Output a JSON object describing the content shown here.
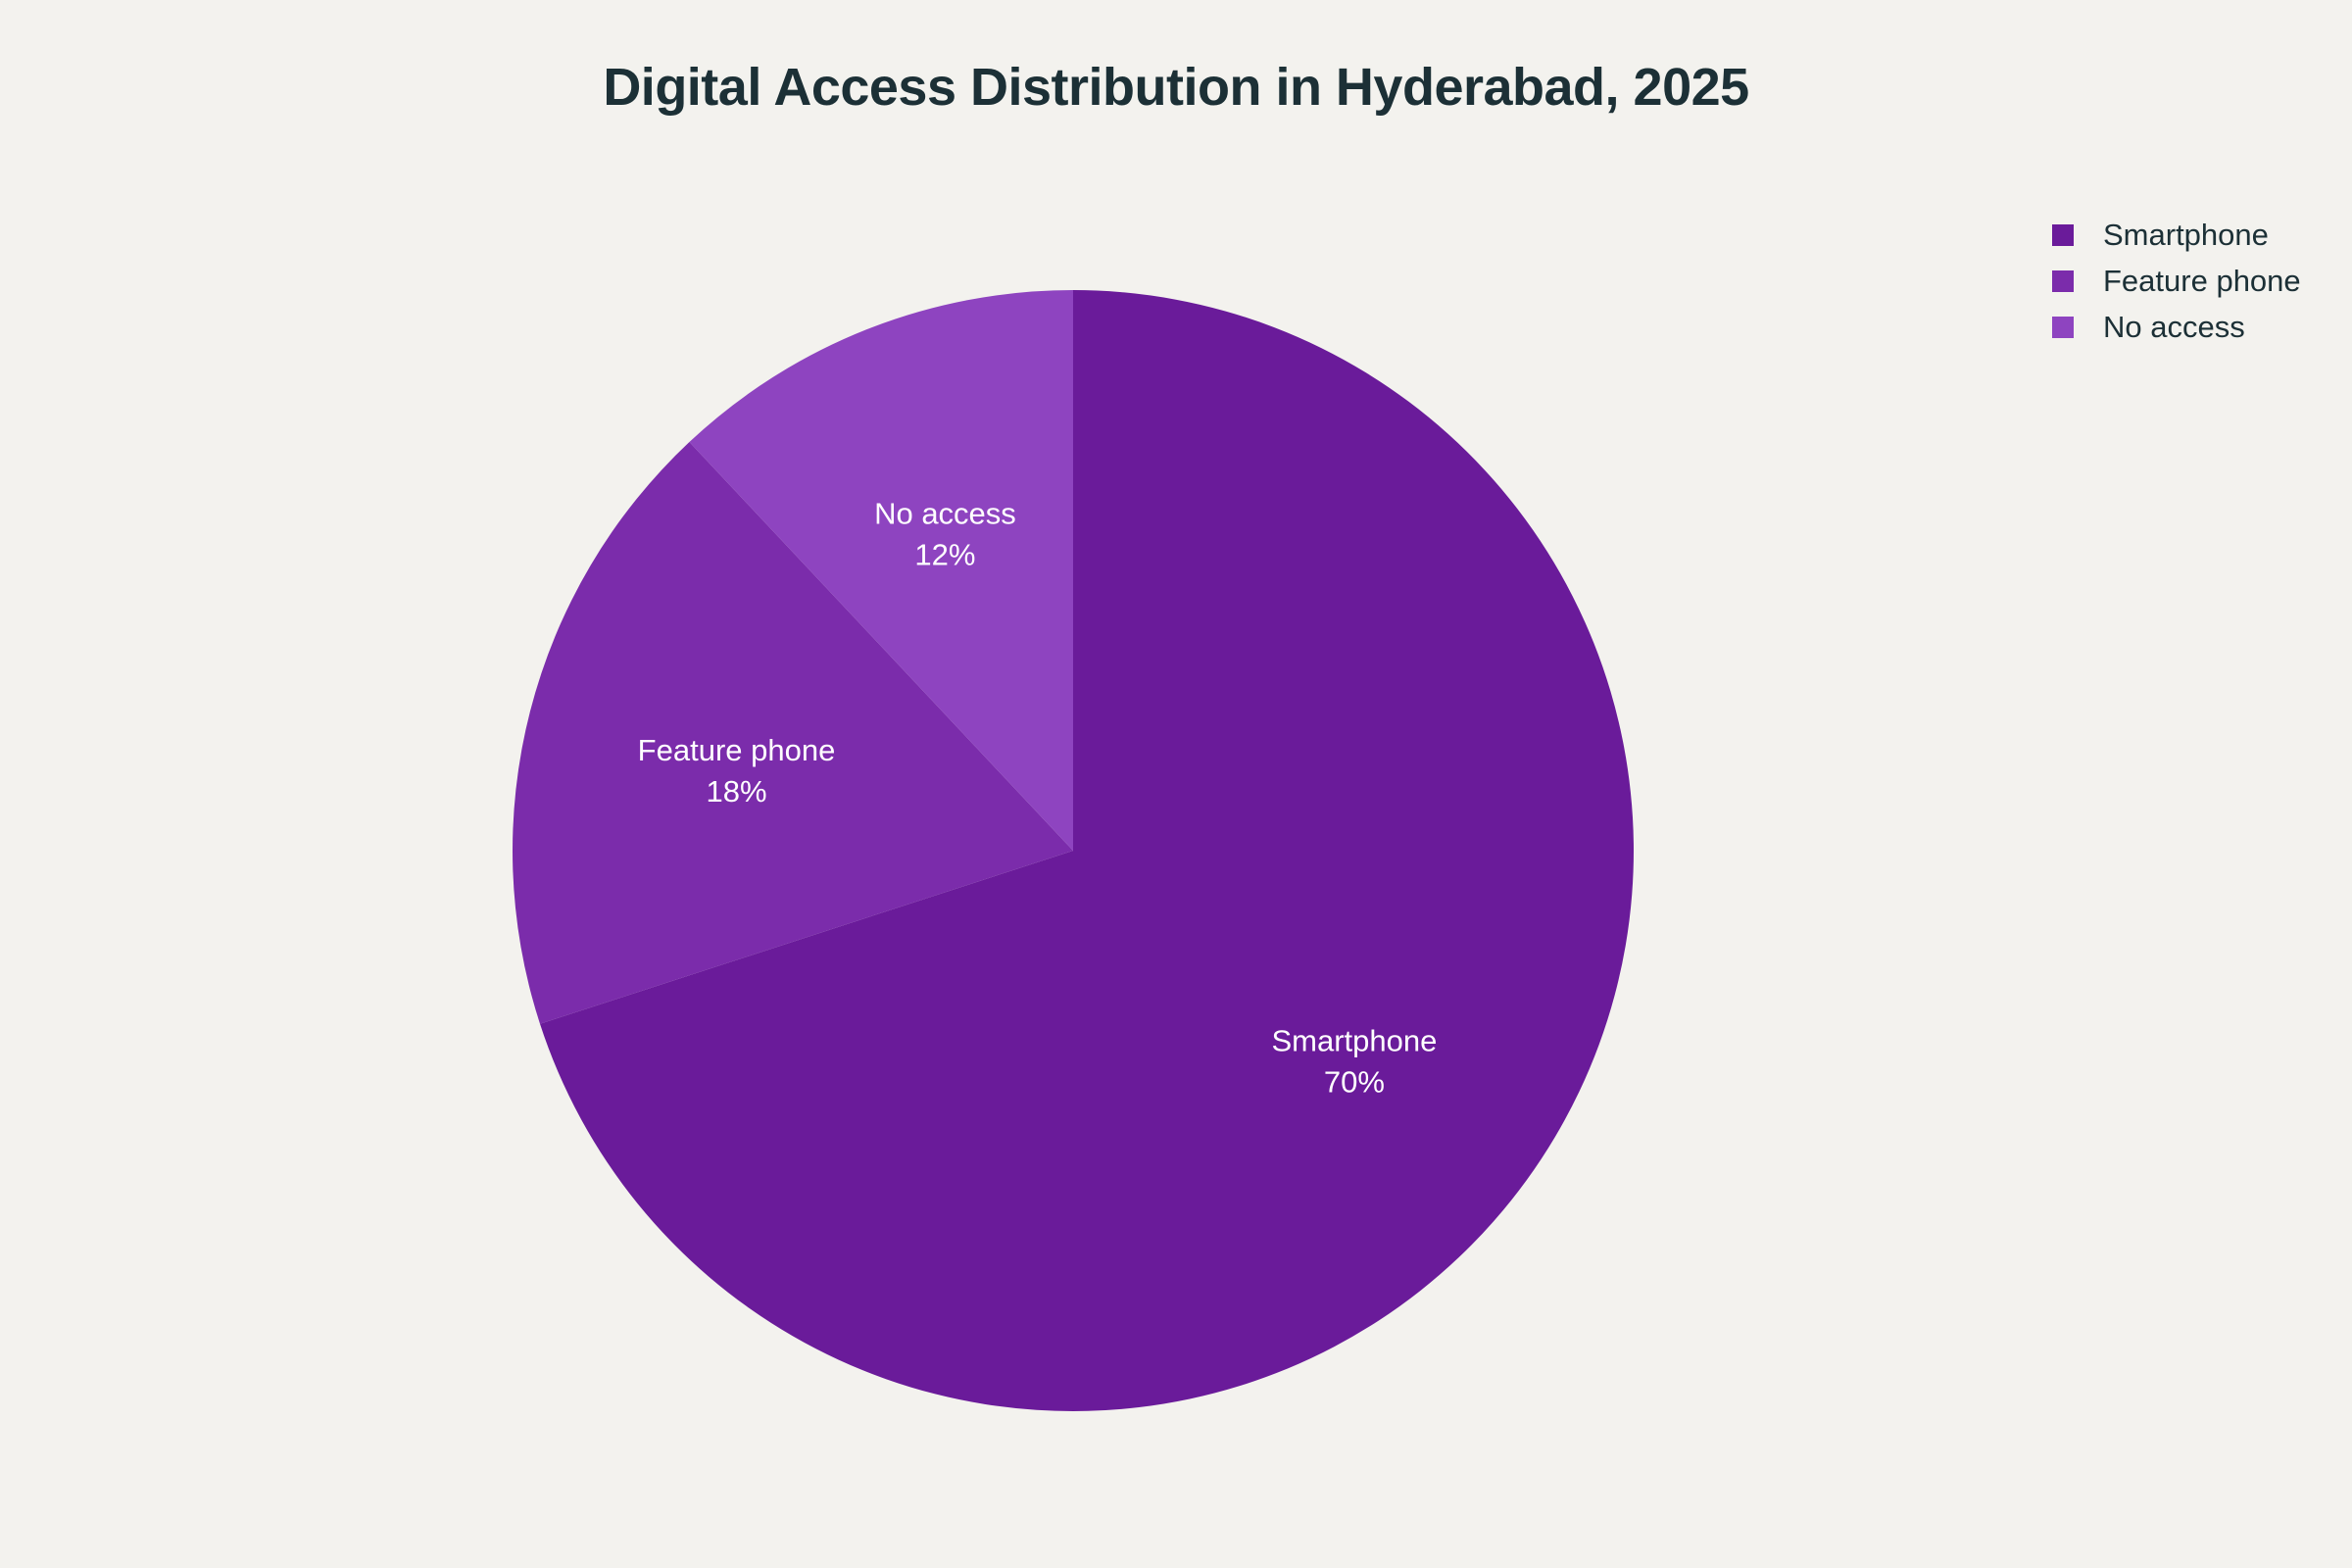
{
  "chart_data": {
    "type": "pie",
    "title": "Digital Access Distribution in Hyderabad, 2025",
    "slices": [
      {
        "label": "Smartphone",
        "value": 70,
        "value_label": "70%",
        "color": "#6a1b9a"
      },
      {
        "label": "Feature phone",
        "value": 18,
        "value_label": "18%",
        "color": "#7b2cab"
      },
      {
        "label": "No access",
        "value": 12,
        "value_label": "12%",
        "color": "#8e44c0"
      }
    ],
    "legend_position": "top-right",
    "start_angle": "12 o'clock",
    "direction": "clockwise"
  }
}
